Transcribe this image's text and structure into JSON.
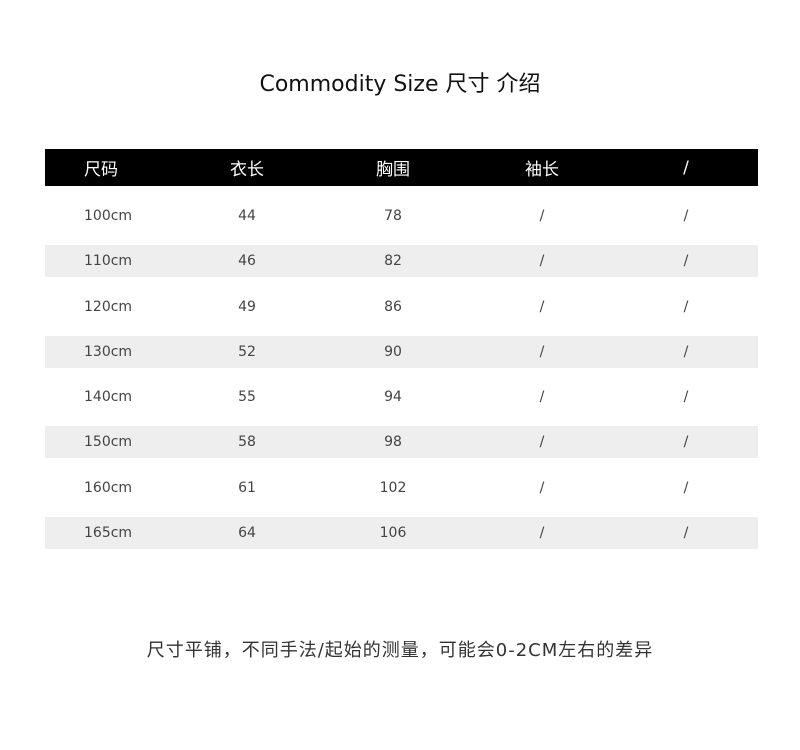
{
  "title": "Commodity Size  尺寸 介绍",
  "table": {
    "headers": [
      "尺码",
      "衣长",
      "胸围",
      "袖长",
      "/"
    ],
    "rows": [
      [
        "100cm",
        "44",
        "78",
        "/",
        "/"
      ],
      [
        "110cm",
        "46",
        "82",
        "/",
        "/"
      ],
      [
        "120cm",
        "49",
        "86",
        "/",
        "/"
      ],
      [
        "130cm",
        "52",
        "90",
        "/",
        "/"
      ],
      [
        "140cm",
        "55",
        "94",
        "/",
        "/"
      ],
      [
        "150cm",
        "58",
        "98",
        "/",
        "/"
      ],
      [
        "160cm",
        "61",
        "102",
        "/",
        "/"
      ],
      [
        "165cm",
        "64",
        "106",
        "/",
        "/"
      ]
    ],
    "header_bg": "#000000",
    "stripe_bg": "#eeeeee"
  },
  "note": "尺寸平铺，不同手法/起始的测量，可能会0-2CM左右的差异"
}
